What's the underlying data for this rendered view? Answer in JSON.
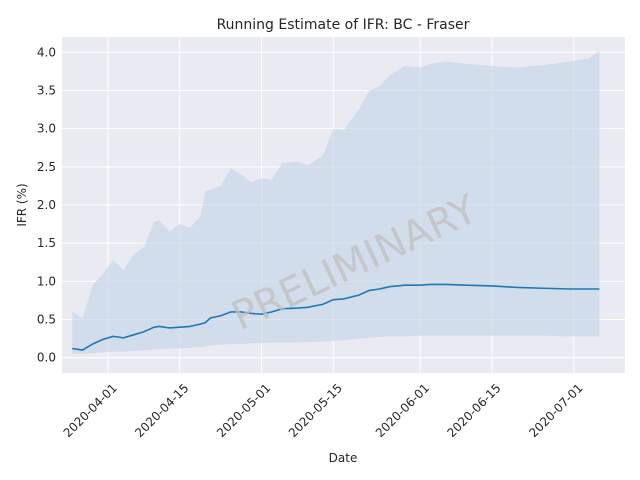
{
  "chart_data": {
    "type": "line",
    "title": "Running Estimate of IFR: BC - Fraser",
    "xlabel": "Date",
    "ylabel": "IFR (%)",
    "watermark": "PRELIMINARY",
    "xlim": [
      "2020-03-23",
      "2020-07-11"
    ],
    "ylim": [
      -0.2,
      4.2
    ],
    "x_ticks": [
      "2020-04-01",
      "2020-04-15",
      "2020-05-01",
      "2020-05-15",
      "2020-06-01",
      "2020-06-15",
      "2020-07-01"
    ],
    "y_ticks": [
      0.0,
      0.5,
      1.0,
      1.5,
      2.0,
      2.5,
      3.0,
      3.5,
      4.0
    ],
    "y_tick_labels": [
      "0.0",
      "0.5",
      "1.0",
      "1.5",
      "2.0",
      "2.5",
      "3.0",
      "3.5",
      "4.0"
    ],
    "grid": true,
    "colors": {
      "line": "#1f77b4",
      "band": "#c5d5e8",
      "plot_bg": "#eaeaf2",
      "grid": "#ffffff"
    },
    "series": [
      {
        "x": [
          "2020-03-25",
          "2020-03-27",
          "2020-03-29",
          "2020-03-31",
          "2020-04-02",
          "2020-04-04",
          "2020-04-06",
          "2020-04-08",
          "2020-04-10",
          "2020-04-11",
          "2020-04-13",
          "2020-04-15",
          "2020-04-17",
          "2020-04-19",
          "2020-04-20",
          "2020-04-21",
          "2020-04-23",
          "2020-04-25",
          "2020-04-27",
          "2020-04-29",
          "2020-05-01",
          "2020-05-03",
          "2020-05-05",
          "2020-05-08",
          "2020-05-10",
          "2020-05-13",
          "2020-05-15",
          "2020-05-17",
          "2020-05-20",
          "2020-05-22",
          "2020-05-24",
          "2020-05-26",
          "2020-05-29",
          "2020-06-01",
          "2020-06-03",
          "2020-06-06",
          "2020-06-10",
          "2020-06-15",
          "2020-06-20",
          "2020-06-25",
          "2020-06-30",
          "2020-07-04",
          "2020-07-06"
        ],
        "y": [
          0.12,
          0.1,
          0.18,
          0.24,
          0.28,
          0.26,
          0.3,
          0.34,
          0.4,
          0.41,
          0.39,
          0.4,
          0.41,
          0.44,
          0.46,
          0.52,
          0.55,
          0.6,
          0.6,
          0.58,
          0.57,
          0.6,
          0.64,
          0.65,
          0.66,
          0.7,
          0.76,
          0.77,
          0.82,
          0.88,
          0.9,
          0.93,
          0.95,
          0.95,
          0.96,
          0.96,
          0.95,
          0.94,
          0.92,
          0.91,
          0.9,
          0.9,
          0.9
        ],
        "lower": [
          0.05,
          0.05,
          0.06,
          0.07,
          0.08,
          0.08,
          0.09,
          0.1,
          0.11,
          0.11,
          0.12,
          0.12,
          0.13,
          0.14,
          0.15,
          0.16,
          0.17,
          0.18,
          0.18,
          0.19,
          0.19,
          0.2,
          0.2,
          0.2,
          0.21,
          0.21,
          0.22,
          0.23,
          0.25,
          0.26,
          0.27,
          0.28,
          0.28,
          0.29,
          0.29,
          0.29,
          0.29,
          0.29,
          0.29,
          0.29,
          0.28,
          0.28,
          0.28
        ],
        "upper": [
          0.6,
          0.52,
          0.95,
          1.1,
          1.28,
          1.15,
          1.35,
          1.45,
          1.78,
          1.8,
          1.65,
          1.75,
          1.7,
          1.85,
          2.18,
          2.2,
          2.25,
          2.48,
          2.4,
          2.3,
          2.35,
          2.33,
          2.55,
          2.57,
          2.52,
          2.65,
          3.0,
          2.98,
          3.25,
          3.5,
          3.55,
          3.7,
          3.82,
          3.8,
          3.85,
          3.88,
          3.85,
          3.82,
          3.8,
          3.83,
          3.88,
          3.92,
          4.02
        ]
      }
    ]
  }
}
